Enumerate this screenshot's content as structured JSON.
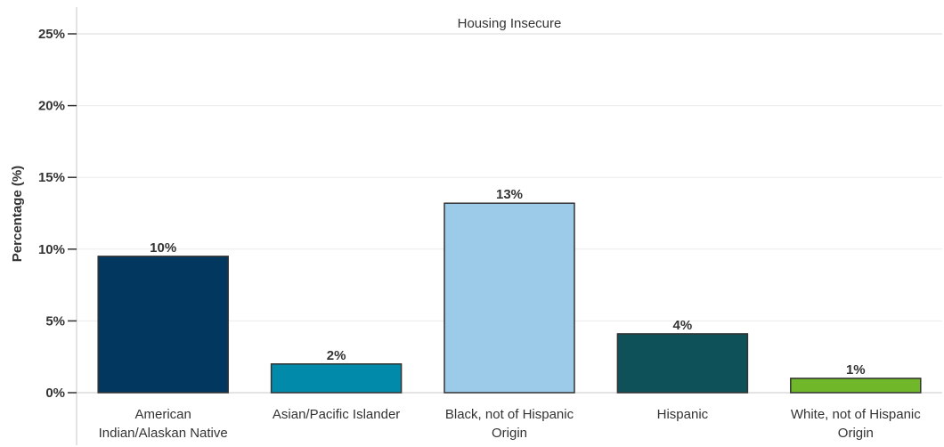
{
  "chart_data": {
    "type": "bar",
    "title": "Housing Insecure",
    "ylabel": "Percentage (%)",
    "xlabel": "",
    "categories": [
      [
        "American",
        "Indian/Alaskan Native"
      ],
      [
        "Asian/Pacific Islander"
      ],
      [
        "Black, not of Hispanic",
        "Origin"
      ],
      [
        "Hispanic"
      ],
      [
        "White, not of Hispanic",
        "Origin"
      ]
    ],
    "values": [
      9.5,
      2.0,
      13.2,
      4.1,
      1.0
    ],
    "data_labels": [
      "10%",
      "2%",
      "13%",
      "4%",
      "1%"
    ],
    "colors": [
      "#02375f",
      "#028aaa",
      "#9ccbe9",
      "#0f5158",
      "#70b82a"
    ],
    "ylim": [
      0,
      25
    ],
    "yticks": [
      0,
      5,
      10,
      15,
      20,
      25
    ],
    "ytick_labels": [
      "0%",
      "5%",
      "10%",
      "15%",
      "20%",
      "25%"
    ],
    "grid": true,
    "legend": "none"
  }
}
